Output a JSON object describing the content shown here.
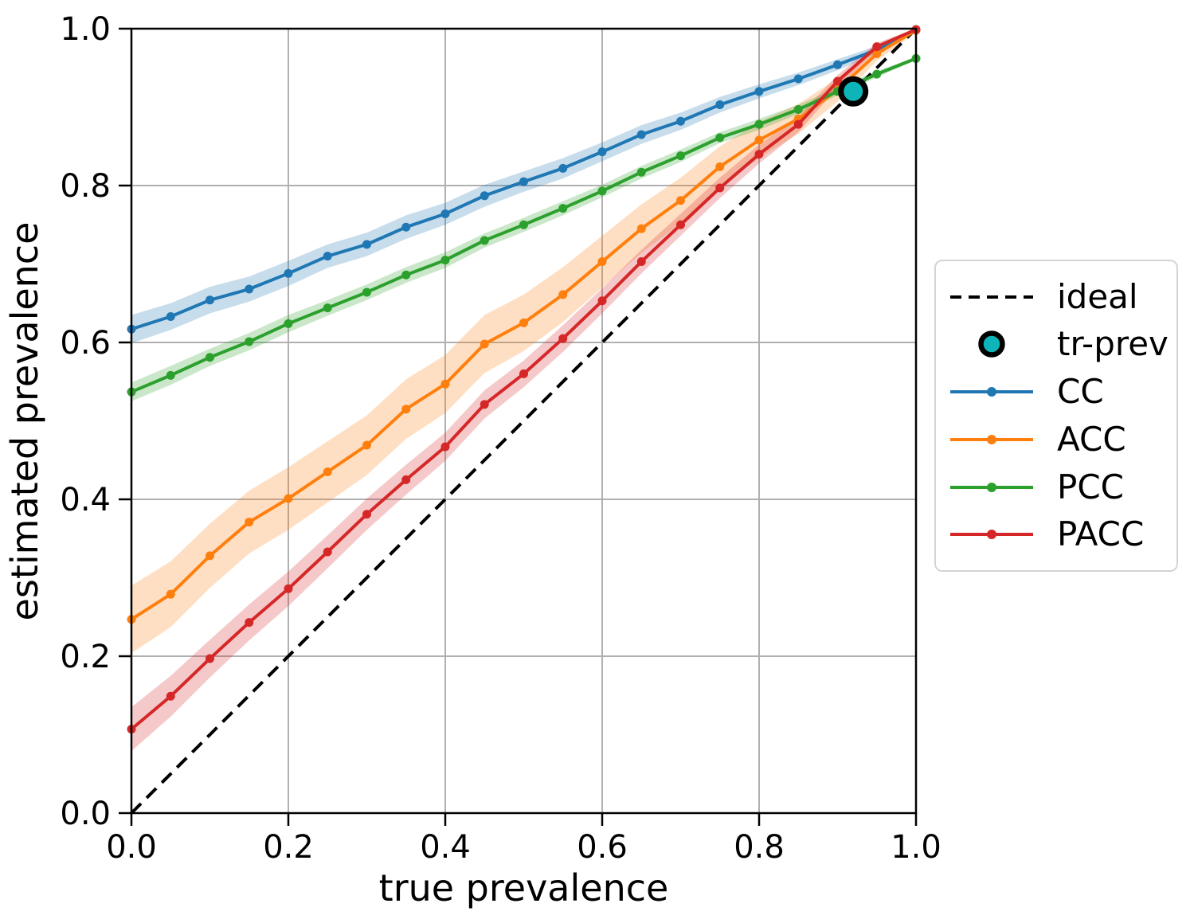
{
  "figure": {
    "background": "#ffffff",
    "grid_color": "#b0b0b0",
    "spine_color": "#000000"
  },
  "axes": {
    "xlabel": "true prevalence",
    "ylabel": "estimated prevalence"
  },
  "legend": {
    "items": [
      {
        "label": "ideal",
        "swatch": "dashed-line",
        "color": "#000000"
      },
      {
        "label": "tr-prev",
        "swatch": "circle",
        "color": "#0db5b9",
        "edge": "#000000"
      },
      {
        "label": "CC",
        "swatch": "line-dot",
        "color": "#1f77b4"
      },
      {
        "label": "ACC",
        "swatch": "line-dot",
        "color": "#ff7f0e"
      },
      {
        "label": "PCC",
        "swatch": "line-dot",
        "color": "#2ca02c"
      },
      {
        "label": "PACC",
        "swatch": "line-dot",
        "color": "#d62728"
      }
    ]
  },
  "chart_data": {
    "type": "line",
    "title": "",
    "xlabel": "true prevalence",
    "ylabel": "estimated prevalence",
    "xlim": [
      0.0,
      1.0
    ],
    "ylim": [
      0.0,
      1.0
    ],
    "grid": true,
    "legend_position": "center right, outside axes",
    "x_ticks": [
      {
        "v": 0.0,
        "label": "0.0"
      },
      {
        "v": 0.2,
        "label": "0.2"
      },
      {
        "v": 0.4,
        "label": "0.4"
      },
      {
        "v": 0.6,
        "label": "0.6"
      },
      {
        "v": 0.8,
        "label": "0.8"
      },
      {
        "v": 1.0,
        "label": "1.0"
      }
    ],
    "y_ticks": [
      {
        "v": 0.0,
        "label": "0.0"
      },
      {
        "v": 0.2,
        "label": "0.2"
      },
      {
        "v": 0.4,
        "label": "0.4"
      },
      {
        "v": 0.6,
        "label": "0.6"
      },
      {
        "v": 0.8,
        "label": "0.8"
      },
      {
        "v": 1.0,
        "label": "1.0"
      }
    ],
    "x": [
      0.0,
      0.05,
      0.1,
      0.15,
      0.2,
      0.25,
      0.3,
      0.35,
      0.4,
      0.45,
      0.5,
      0.55,
      0.6,
      0.65,
      0.7,
      0.75,
      0.8,
      0.85,
      0.9,
      0.95,
      1.0
    ],
    "series": [
      {
        "name": "CC",
        "color": "#1f77b4",
        "band_alpha": 0.25,
        "values": [
          0.617,
          0.633,
          0.654,
          0.668,
          0.688,
          0.71,
          0.725,
          0.747,
          0.764,
          0.787,
          0.805,
          0.822,
          0.843,
          0.865,
          0.882,
          0.903,
          0.92,
          0.936,
          0.954,
          0.973,
          0.998
        ],
        "band_halfwidth": [
          0.018,
          0.017,
          0.017,
          0.016,
          0.016,
          0.015,
          0.015,
          0.015,
          0.014,
          0.014,
          0.013,
          0.013,
          0.012,
          0.012,
          0.011,
          0.01,
          0.009,
          0.008,
          0.007,
          0.005,
          0.002
        ]
      },
      {
        "name": "ACC",
        "color": "#ff7f0e",
        "band_alpha": 0.25,
        "values": [
          0.247,
          0.279,
          0.328,
          0.371,
          0.401,
          0.435,
          0.469,
          0.515,
          0.547,
          0.598,
          0.625,
          0.661,
          0.703,
          0.745,
          0.781,
          0.824,
          0.858,
          0.885,
          0.922,
          0.968,
          0.998
        ],
        "band_halfwidth": [
          0.043,
          0.042,
          0.041,
          0.04,
          0.04,
          0.039,
          0.038,
          0.038,
          0.037,
          0.037,
          0.036,
          0.035,
          0.033,
          0.031,
          0.029,
          0.026,
          0.023,
          0.019,
          0.015,
          0.009,
          0.003
        ]
      },
      {
        "name": "PCC",
        "color": "#2ca02c",
        "band_alpha": 0.25,
        "values": [
          0.537,
          0.558,
          0.581,
          0.601,
          0.624,
          0.644,
          0.664,
          0.686,
          0.705,
          0.73,
          0.75,
          0.771,
          0.793,
          0.817,
          0.838,
          0.861,
          0.878,
          0.897,
          0.92,
          0.942,
          0.962
        ],
        "band_halfwidth": [
          0.012,
          0.012,
          0.011,
          0.011,
          0.011,
          0.01,
          0.01,
          0.01,
          0.01,
          0.009,
          0.009,
          0.009,
          0.008,
          0.008,
          0.008,
          0.007,
          0.007,
          0.006,
          0.005,
          0.004,
          0.002
        ]
      },
      {
        "name": "PACC",
        "color": "#d62728",
        "band_alpha": 0.25,
        "values": [
          0.107,
          0.149,
          0.197,
          0.243,
          0.286,
          0.333,
          0.381,
          0.425,
          0.467,
          0.521,
          0.56,
          0.605,
          0.653,
          0.703,
          0.75,
          0.797,
          0.84,
          0.878,
          0.933,
          0.977,
          0.999
        ],
        "band_halfwidth": [
          0.028,
          0.026,
          0.024,
          0.023,
          0.022,
          0.021,
          0.02,
          0.019,
          0.018,
          0.018,
          0.017,
          0.017,
          0.016,
          0.015,
          0.014,
          0.013,
          0.012,
          0.01,
          0.008,
          0.005,
          0.002
        ]
      }
    ],
    "ideal_line": {
      "label": "ideal",
      "style": "dashed",
      "color": "#000000",
      "from": [
        0.0,
        0.0
      ],
      "to": [
        1.0,
        1.0
      ]
    },
    "tr_prev_marker": {
      "label": "tr-prev",
      "x": 0.92,
      "y": 0.92,
      "fill": "#0db5b9",
      "edge": "#000000"
    }
  }
}
